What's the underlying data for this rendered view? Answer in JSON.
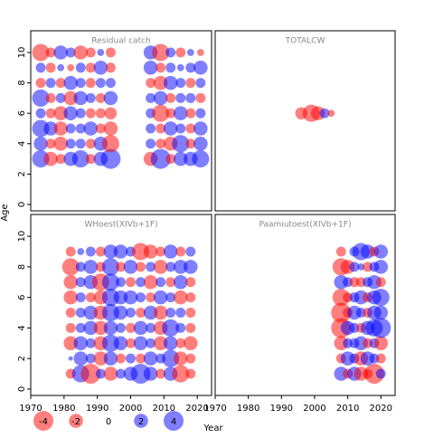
{
  "axes": {
    "xlabel": "Year",
    "ylabel": "Age",
    "xlim": [
      1970,
      2024.3
    ],
    "ylim": [
      -0.42,
      11.43
    ],
    "xticks": [
      1970,
      1980,
      1990,
      2000,
      2010,
      2020
    ],
    "yticks": [
      0,
      2,
      4,
      6,
      8,
      10
    ]
  },
  "positive_color": "#0000ff",
  "negative_color": "#ff0000",
  "legend": {
    "values": [
      -4,
      -2,
      0,
      2,
      4
    ]
  },
  "chart_data": [
    {
      "type": "bubble",
      "title": "Residual catch",
      "years": [
        1973,
        1976,
        1979,
        1982,
        1985,
        1988,
        1991,
        1994,
        2006,
        2009,
        2012,
        2015,
        2018,
        2021
      ],
      "ages": [
        3,
        4,
        5,
        6,
        7,
        8,
        9,
        10
      ],
      "residuals": [
        [
          3,
          -2,
          -1,
          2,
          3,
          -1,
          2,
          4,
          -2,
          4,
          -1,
          2,
          2,
          3
        ],
        [
          2,
          -1,
          -2,
          1,
          1,
          -1,
          2,
          -3,
          1,
          -1,
          -2,
          3,
          -1,
          2
        ],
        [
          3,
          2,
          -2,
          1,
          1,
          2,
          -1,
          -2,
          1,
          -1,
          2,
          1,
          -1,
          2
        ],
        [
          1,
          -1,
          -2,
          2,
          1,
          -1,
          -1,
          -1.5,
          1,
          -3,
          -1,
          2,
          -1,
          1
        ],
        [
          3,
          -1,
          1,
          -2,
          2,
          1,
          -1,
          2,
          1,
          2,
          -1,
          1,
          1,
          -1
        ],
        [
          -1,
          1,
          -1,
          2,
          1,
          -1,
          1,
          1,
          -1,
          -2,
          2,
          1,
          -1,
          1
        ],
        [
          1,
          -1,
          0.5,
          -0.5,
          1,
          -1,
          2,
          -1,
          2,
          -1,
          1,
          0.5,
          1,
          2
        ],
        [
          -3,
          -1,
          2,
          1,
          -2,
          -1,
          0.5,
          -1,
          2,
          -3,
          1,
          -1,
          0.5,
          -0.5
        ]
      ]
    },
    {
      "type": "bubble",
      "title": "TOTALCW",
      "years": [
        1996,
        1999,
        2001,
        2003,
        2005
      ],
      "ages": [
        6
      ],
      "residuals": [
        [
          -1.5,
          -3,
          -2,
          1,
          -0.5
        ]
      ]
    },
    {
      "type": "bubble",
      "title": "WHoest(XIVb+1F)",
      "years": [
        1982,
        1985,
        1988,
        1991,
        1994,
        1997,
        2000,
        2003,
        2006,
        2009,
        2012,
        2015,
        2018
      ],
      "ages": [
        1,
        2,
        3,
        4,
        5,
        6,
        7,
        8,
        9
      ],
      "residuals": [
        [
          -1,
          3,
          -4,
          1,
          -2,
          1,
          2,
          4,
          2,
          -1,
          2,
          -3,
          -1
        ],
        [
          0.2,
          2,
          1,
          -2,
          2,
          -1,
          1,
          -1,
          2,
          1,
          3,
          -2,
          -1
        ],
        [
          -2,
          2,
          1,
          -2,
          3,
          2,
          -1,
          2,
          1,
          -2,
          2,
          -1,
          -2
        ],
        [
          -1,
          1,
          2,
          -2,
          2,
          1,
          -1,
          2,
          1,
          -2,
          3,
          1,
          -1
        ],
        [
          -1,
          1,
          2,
          -2,
          3,
          2,
          1,
          -1,
          2,
          -2,
          1,
          1,
          -1
        ],
        [
          -2,
          1,
          -1,
          -2,
          3,
          2,
          2,
          1,
          -1,
          2,
          1,
          -2,
          -1
        ],
        [
          -2,
          1,
          2,
          -3,
          3,
          1,
          -1,
          1,
          -2,
          1,
          -1,
          2,
          -1
        ],
        [
          -3,
          1,
          2,
          -1,
          3,
          -1,
          2,
          -1,
          1,
          -2,
          1,
          2,
          2
        ],
        [
          -1,
          0.5,
          1,
          -1,
          2,
          2,
          1,
          -3,
          -2,
          -1,
          2,
          -1,
          1
        ]
      ]
    },
    {
      "type": "bubble",
      "title": "Paamiutoest(XIVb+1F)",
      "years": [
        2008,
        2010,
        2012,
        2014,
        2016,
        2018,
        2020
      ],
      "ages": [
        1,
        2,
        3,
        4,
        5,
        6,
        7,
        8,
        9
      ],
      "residuals": [
        [
          2,
          -1,
          2,
          -2,
          -1,
          -4,
          1
        ],
        [
          -1,
          2,
          1,
          -2,
          2,
          1,
          -1
        ],
        [
          -2,
          1,
          1,
          2,
          -1,
          1,
          -2
        ],
        [
          -4,
          2,
          1,
          -1,
          2,
          3,
          4
        ],
        [
          -4,
          -1,
          2,
          1,
          -1,
          2,
          2
        ],
        [
          -3,
          -1,
          1,
          2,
          -1,
          2,
          3
        ],
        [
          2,
          1,
          -1,
          -1,
          1,
          2,
          -1
        ],
        [
          -3,
          -2,
          1,
          0.5,
          -1,
          1,
          2
        ],
        [
          -1,
          null,
          1,
          3,
          2,
          -1,
          2
        ]
      ]
    }
  ]
}
